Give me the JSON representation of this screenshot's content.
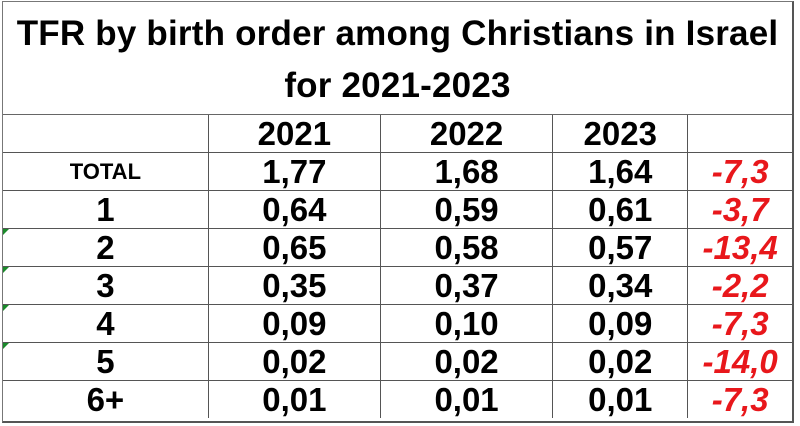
{
  "title": {
    "line1": "TFR by birth order among Christians in Israel",
    "line2": "for 2021-2023"
  },
  "table": {
    "headers": [
      "",
      "2021",
      "2022",
      "2023",
      ""
    ],
    "rows": [
      {
        "label": "TOTAL",
        "v2021": "1,77",
        "v2022": "1,68",
        "v2023": "1,64",
        "change": "-7,3"
      },
      {
        "label": "1",
        "v2021": "0,64",
        "v2022": "0,59",
        "v2023": "0,61",
        "change": "-3,7"
      },
      {
        "label": "2",
        "v2021": "0,65",
        "v2022": "0,58",
        "v2023": "0,57",
        "change": "-13,4"
      },
      {
        "label": "3",
        "v2021": "0,35",
        "v2022": "0,37",
        "v2023": "0,34",
        "change": "-2,2"
      },
      {
        "label": "4",
        "v2021": "0,09",
        "v2022": "0,10",
        "v2023": "0,09",
        "change": "-7,3"
      },
      {
        "label": "5",
        "v2021": "0,02",
        "v2022": "0,02",
        "v2023": "0,02",
        "change": "-14,0"
      },
      {
        "label": "6+",
        "v2021": "0,01",
        "v2022": "0,01",
        "v2023": "0,01",
        "change": "-7,3"
      }
    ]
  },
  "colors": {
    "change_text": "#e8171b",
    "grid_line": "#555555",
    "cell_marker": "#1a8a2a"
  }
}
